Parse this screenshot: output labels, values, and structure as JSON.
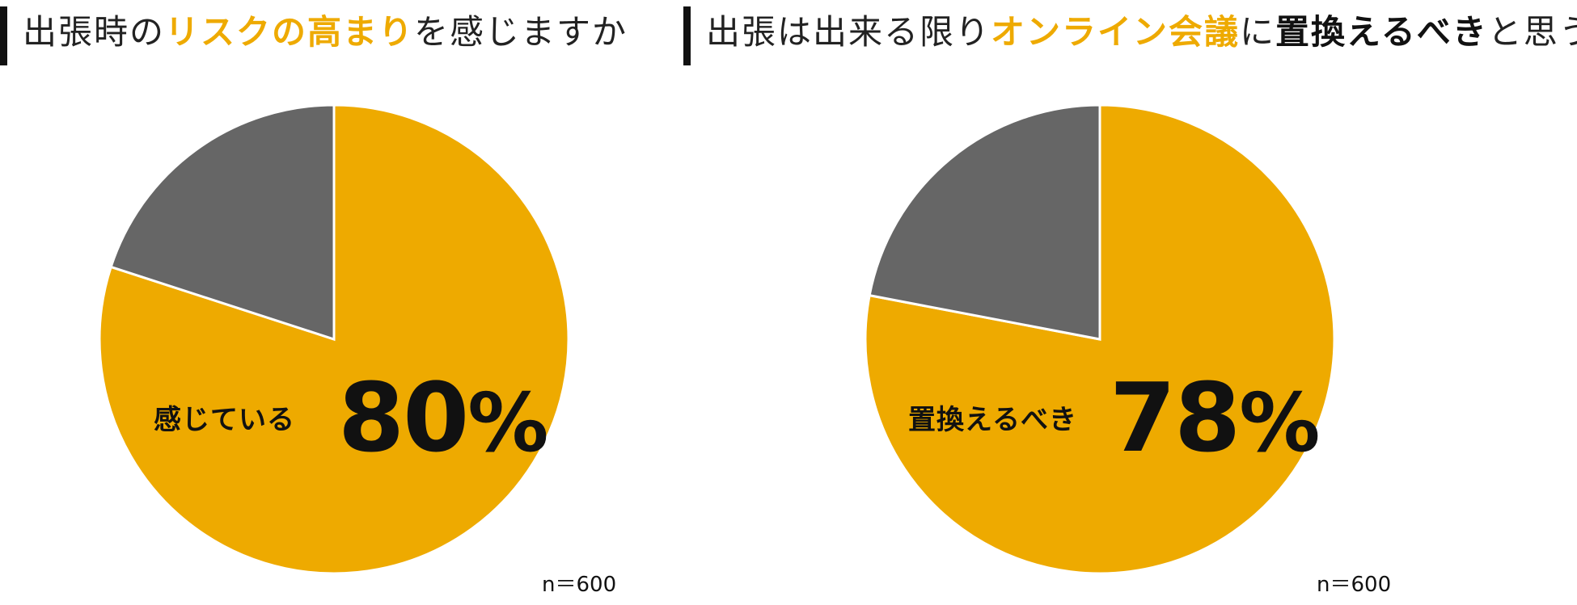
{
  "colors": {
    "accent": "#eeaa00",
    "other": "#666666",
    "text": "#111111"
  },
  "charts": [
    {
      "title": {
        "pre": "出張時の",
        "accent": "リスクの高まり",
        "post": "を感じますか"
      },
      "label": "感じている",
      "value_text": "80",
      "percent_sign": "%",
      "sample": "n＝600"
    },
    {
      "title": {
        "pre": "出張は出来る限り",
        "accent": "オンライン会議",
        "mid": "に",
        "strong": "置換えるべき",
        "post": "と思う"
      },
      "label": "置換えるべき",
      "value_text": "78",
      "percent_sign": "%",
      "sample": "n＝600"
    }
  ],
  "chart_data": [
    {
      "type": "pie",
      "title": "出張時のリスクの高まりを感じますか",
      "slices": [
        {
          "label": "感じている",
          "value": 80,
          "color": "#eeaa00"
        },
        {
          "label": "",
          "value": 20,
          "color": "#666666"
        }
      ],
      "start": "12 o'clock, clockwise",
      "annotation": "n＝600"
    },
    {
      "type": "pie",
      "title": "出張は出来る限りオンライン会議に置換えるべきと思う",
      "slices": [
        {
          "label": "置換えるべき",
          "value": 78,
          "color": "#eeaa00"
        },
        {
          "label": "",
          "value": 22,
          "color": "#666666"
        }
      ],
      "start": "12 o'clock, clockwise",
      "annotation": "n＝600"
    }
  ]
}
